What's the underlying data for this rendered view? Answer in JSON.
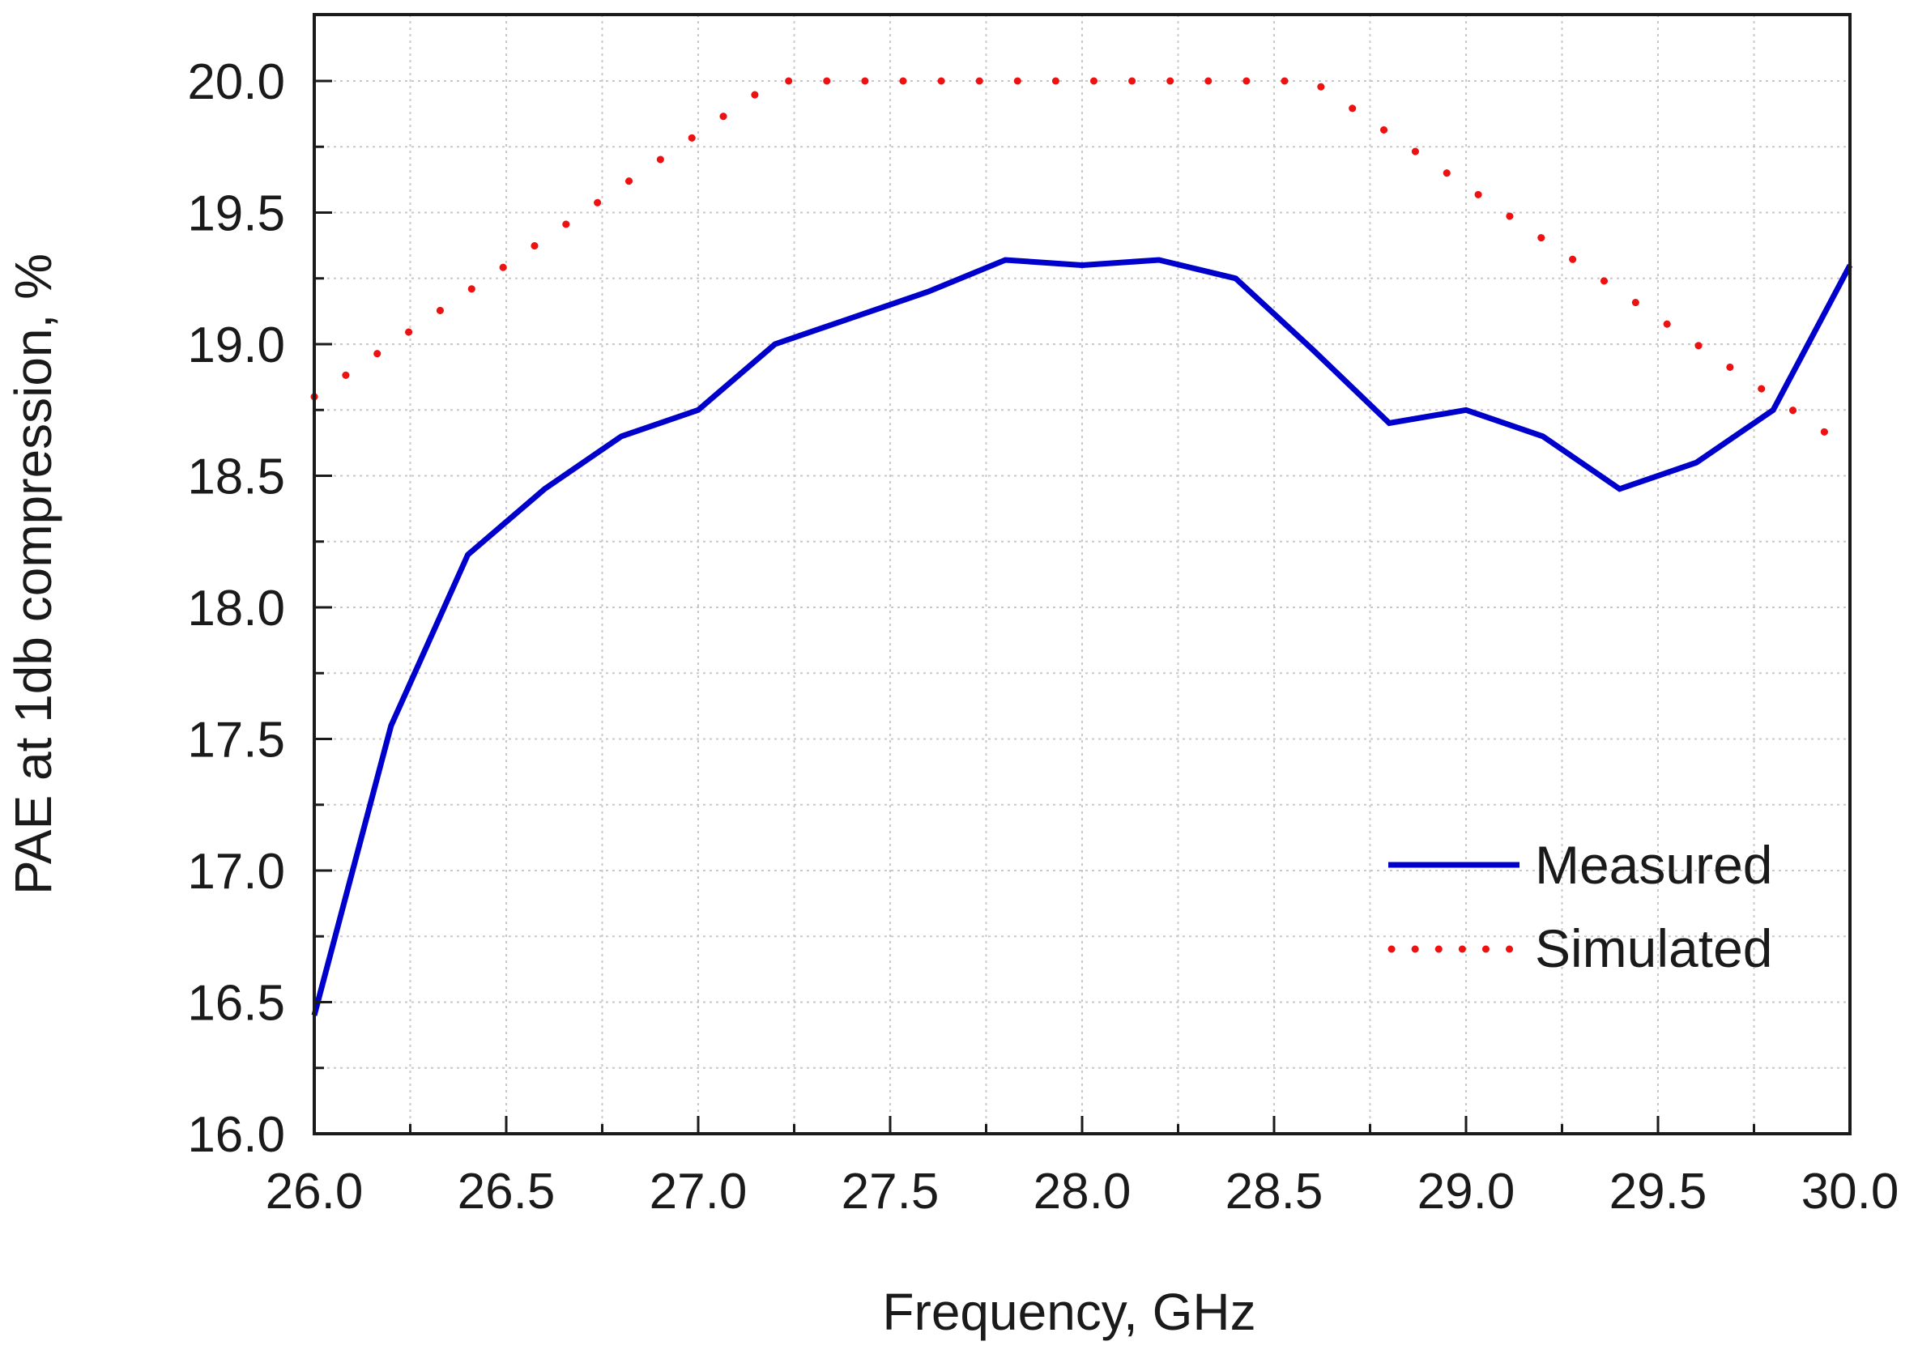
{
  "chart_data": {
    "type": "line",
    "title": "",
    "xlabel": "Frequency, GHz",
    "ylabel": "PAE at 1db compression, %",
    "xlim": [
      26.0,
      30.0
    ],
    "ylim": [
      16.0,
      20.2
    ],
    "grid": true,
    "legend_position": "bottom-right",
    "x_ticks": [
      "26.0",
      "26.5",
      "27.0",
      "27.5",
      "28.0",
      "28.5",
      "29.0",
      "29.5",
      "30.0"
    ],
    "y_ticks": [
      "16.0",
      "16.5",
      "17.0",
      "17.5",
      "18.0",
      "18.5",
      "19.0",
      "19.5",
      "20.0"
    ],
    "series": [
      {
        "name": "Measured",
        "style": "solid",
        "color": "#0000cc",
        "x": [
          26.0,
          26.2,
          26.4,
          26.6,
          26.8,
          27.0,
          27.2,
          27.4,
          27.6,
          27.8,
          28.0,
          28.2,
          28.4,
          28.6,
          28.8,
          29.0,
          29.2,
          29.4,
          29.6,
          29.8,
          30.0
        ],
        "values": [
          16.45,
          17.55,
          18.2,
          18.45,
          18.65,
          18.75,
          19.0,
          19.1,
          19.2,
          19.32,
          19.3,
          19.32,
          19.25,
          18.98,
          18.7,
          18.75,
          18.65,
          18.45,
          18.55,
          18.75,
          19.3
        ]
      },
      {
        "name": "Simulated",
        "style": "dotted",
        "color": "#ee1111",
        "x": [
          26.0,
          26.2,
          26.4,
          26.6,
          26.8,
          27.0,
          27.2,
          27.4,
          27.6,
          27.8,
          28.0,
          28.2,
          28.4,
          28.6,
          28.8,
          29.0,
          29.2,
          29.4,
          29.6,
          29.8,
          29.95
        ],
        "values": [
          18.8,
          19.0,
          19.2,
          19.4,
          19.6,
          19.8,
          20.0,
          20.0,
          20.0,
          20.0,
          20.0,
          20.0,
          20.0,
          20.0,
          19.8,
          19.6,
          19.4,
          19.2,
          19.0,
          18.8,
          18.65
        ]
      }
    ]
  }
}
